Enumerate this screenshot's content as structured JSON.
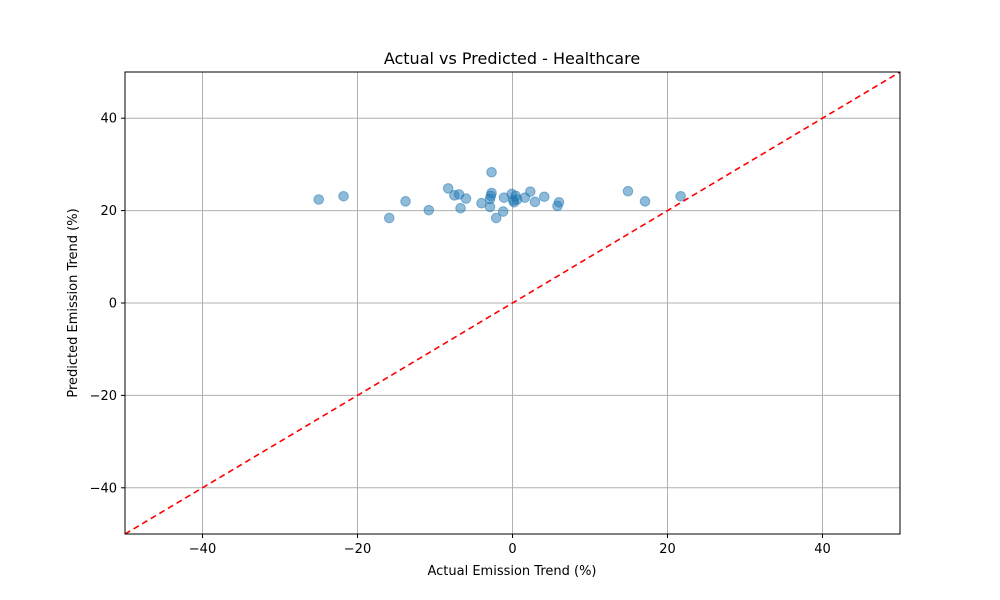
{
  "chart_data": {
    "type": "scatter",
    "title": "Actual vs Predicted - Healthcare",
    "xlabel": "Actual Emission Trend (%)",
    "ylabel": "Predicted Emission Trend (%)",
    "xlim": [
      -50,
      50
    ],
    "ylim": [
      -50,
      50
    ],
    "xticks": [
      -40,
      -20,
      0,
      20,
      40
    ],
    "yticks": [
      -40,
      -20,
      0,
      20,
      40
    ],
    "xtick_labels": [
      "−40",
      "−20",
      "0",
      "20",
      "40"
    ],
    "ytick_labels": [
      "−40",
      "−20",
      "0",
      "20",
      "40"
    ],
    "grid": true,
    "point_color": "#1f77b4",
    "reference_line": {
      "style": "dashed",
      "color": "#ff0000",
      "from": [
        -50,
        -50
      ],
      "to": [
        50,
        50
      ]
    },
    "points": [
      {
        "x": -25.0,
        "y": 22.4
      },
      {
        "x": -21.8,
        "y": 23.1
      },
      {
        "x": -15.9,
        "y": 18.4
      },
      {
        "x": -13.8,
        "y": 22.0
      },
      {
        "x": -10.8,
        "y": 20.1
      },
      {
        "x": -8.3,
        "y": 24.8
      },
      {
        "x": -7.5,
        "y": 23.3
      },
      {
        "x": -6.9,
        "y": 23.5
      },
      {
        "x": -6.7,
        "y": 20.5
      },
      {
        "x": -6.0,
        "y": 22.6
      },
      {
        "x": -4.0,
        "y": 21.6
      },
      {
        "x": -2.9,
        "y": 20.8
      },
      {
        "x": -2.9,
        "y": 22.5
      },
      {
        "x": -2.8,
        "y": 23.2
      },
      {
        "x": -2.7,
        "y": 23.8
      },
      {
        "x": -2.7,
        "y": 28.3
      },
      {
        "x": -2.1,
        "y": 18.4
      },
      {
        "x": -1.2,
        "y": 19.8
      },
      {
        "x": -1.1,
        "y": 22.8
      },
      {
        "x": -0.1,
        "y": 23.6
      },
      {
        "x": 0.1,
        "y": 22.2
      },
      {
        "x": 0.2,
        "y": 21.8
      },
      {
        "x": 0.4,
        "y": 23.2
      },
      {
        "x": 0.6,
        "y": 22.4
      },
      {
        "x": 1.6,
        "y": 22.8
      },
      {
        "x": 2.3,
        "y": 24.1
      },
      {
        "x": 2.9,
        "y": 21.9
      },
      {
        "x": 4.1,
        "y": 23.0
      },
      {
        "x": 5.8,
        "y": 21.0
      },
      {
        "x": 6.0,
        "y": 21.8
      },
      {
        "x": 14.9,
        "y": 24.2
      },
      {
        "x": 17.1,
        "y": 22.0
      },
      {
        "x": 21.7,
        "y": 23.1
      }
    ]
  }
}
